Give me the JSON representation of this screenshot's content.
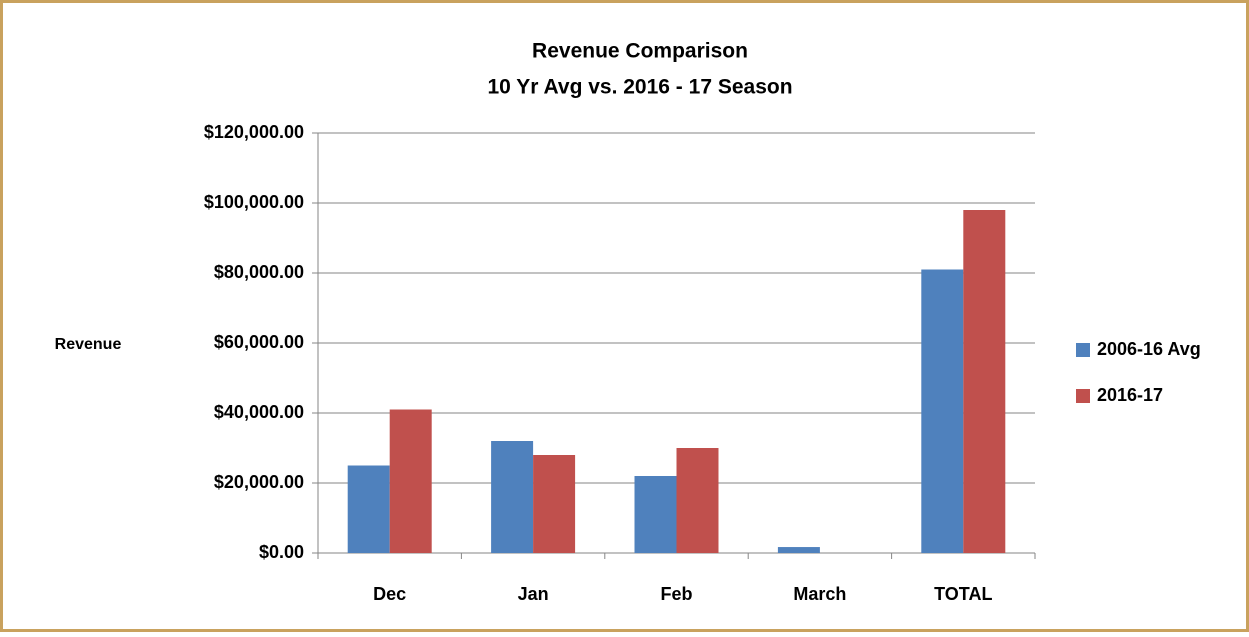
{
  "chart_data": {
    "type": "bar",
    "title": "Revenue Comparison",
    "subtitle": "10 Yr Avg vs. 2016 - 17 Season",
    "y_label": "Revenue",
    "categories": [
      "Dec",
      "Jan",
      "Feb",
      "March",
      "TOTAL"
    ],
    "series": [
      {
        "name": "2006-16 Avg",
        "color": "#4f81bd",
        "values": [
          25000,
          32000,
          22000,
          1700,
          81000
        ]
      },
      {
        "name": "2016-17",
        "color": "#c0504d",
        "values": [
          41000,
          28000,
          30000,
          0,
          98000
        ]
      }
    ],
    "ylim": [
      0,
      120000
    ],
    "yticks": [
      {
        "value": 0,
        "label": "$0.00"
      },
      {
        "value": 20000,
        "label": "$20,000.00"
      },
      {
        "value": 40000,
        "label": "$40,000.00"
      },
      {
        "value": 60000,
        "label": "$60,000.00"
      },
      {
        "value": 80000,
        "label": "$80,000.00"
      },
      {
        "value": 100000,
        "label": "$100,000.00"
      },
      {
        "value": 120000,
        "label": "$120,000.00"
      }
    ],
    "grid": true,
    "legend": "right"
  }
}
